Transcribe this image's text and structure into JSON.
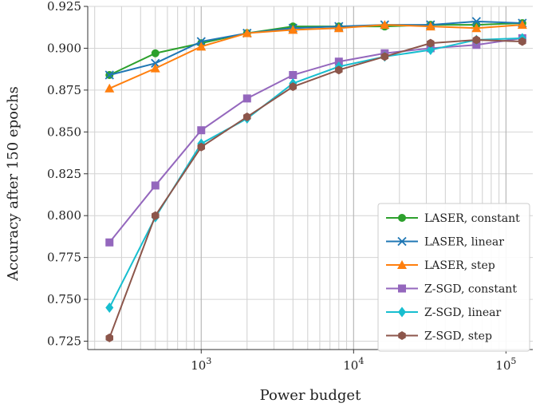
{
  "chart_data": {
    "type": "line",
    "xscale": "log",
    "xlabel": "Power budget",
    "ylabel": "Accuracy after 150 epochs",
    "xlim": [
      180,
      150000
    ],
    "ylim": [
      0.72,
      0.925
    ],
    "grid": true,
    "legend_position": "lower-right",
    "x": [
      250,
      500,
      1000,
      2000,
      4000,
      8000,
      16000,
      32000,
      64000,
      128000
    ],
    "y_ticks": [
      "0.725",
      "0.750",
      "0.775",
      "0.800",
      "0.825",
      "0.850",
      "0.875",
      "0.900",
      "0.925"
    ],
    "x_ticks": [
      {
        "value": 1000,
        "base": "10",
        "exp": "3"
      },
      {
        "value": 10000,
        "base": "10",
        "exp": "4"
      },
      {
        "value": 100000,
        "base": "10",
        "exp": "5"
      }
    ],
    "series": [
      {
        "name": "LASER, constant",
        "color": "#2ca02c",
        "marker": "circle",
        "values": [
          0.884,
          0.897,
          0.903,
          0.909,
          0.913,
          0.913,
          0.913,
          0.914,
          0.914,
          0.915
        ]
      },
      {
        "name": "LASER, linear",
        "color": "#1f77b4",
        "marker": "x",
        "values": [
          0.884,
          0.891,
          0.904,
          0.909,
          0.912,
          0.913,
          0.914,
          0.914,
          0.916,
          0.915
        ]
      },
      {
        "name": "LASER, step",
        "color": "#ff7f0e",
        "marker": "triangle",
        "values": [
          0.876,
          0.888,
          0.901,
          0.909,
          0.911,
          0.912,
          0.914,
          0.913,
          0.912,
          0.914
        ]
      },
      {
        "name": "Z-SGD, constant",
        "color": "#9467bd",
        "marker": "square",
        "values": [
          0.784,
          0.818,
          0.851,
          0.87,
          0.884,
          0.892,
          0.897,
          0.9,
          0.902,
          0.906
        ]
      },
      {
        "name": "Z-SGD, linear",
        "color": "#17becf",
        "marker": "diamond",
        "values": [
          0.745,
          0.799,
          0.843,
          0.858,
          0.879,
          0.889,
          0.895,
          0.899,
          0.905,
          0.906
        ]
      },
      {
        "name": "Z-SGD, step",
        "color": "#8c564b",
        "marker": "hexagon",
        "values": [
          0.727,
          0.8,
          0.841,
          0.859,
          0.877,
          0.887,
          0.895,
          0.903,
          0.905,
          0.904
        ]
      }
    ]
  }
}
